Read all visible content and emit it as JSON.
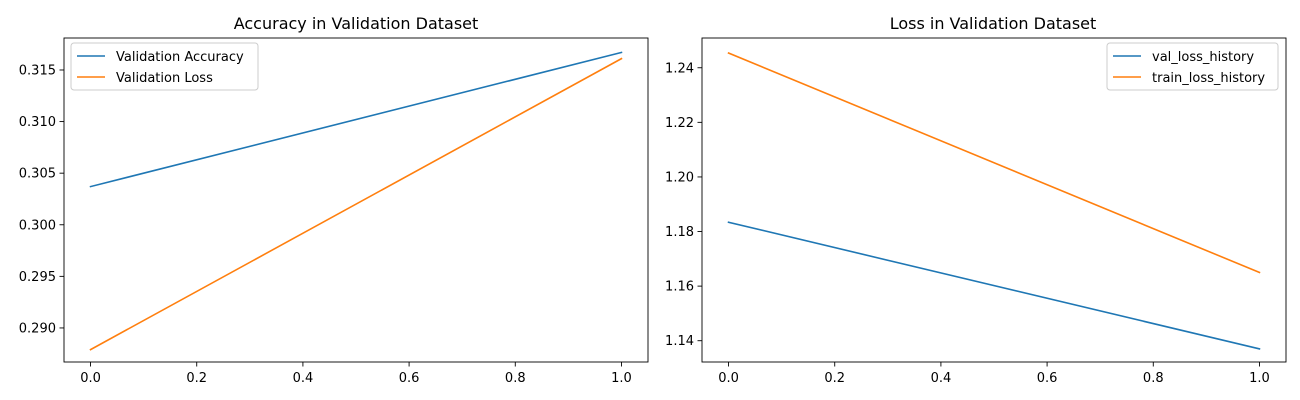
{
  "chart_data": [
    {
      "type": "line",
      "title": "Accuracy in Validation Dataset",
      "xlabel": "",
      "ylabel": "",
      "xlim": [
        -0.05,
        1.05
      ],
      "ylim": [
        0.2867,
        0.3181
      ],
      "xticks": [
        0.0,
        0.2,
        0.4,
        0.6,
        0.8,
        1.0
      ],
      "xtick_labels": [
        "0.0",
        "0.2",
        "0.4",
        "0.6",
        "0.8",
        "1.0"
      ],
      "yticks": [
        0.29,
        0.295,
        0.3,
        0.305,
        0.31,
        0.315
      ],
      "ytick_labels": [
        "0.290",
        "0.295",
        "0.300",
        "0.305",
        "0.310",
        "0.315"
      ],
      "grid": false,
      "legend_position": "top-left",
      "series": [
        {
          "name": "Validation Accuracy",
          "color": "#1f77b4",
          "x": [
            0,
            1
          ],
          "y": [
            0.3037,
            0.3167
          ]
        },
        {
          "name": "Validation Loss",
          "color": "#ff7f0e",
          "x": [
            0,
            1
          ],
          "y": [
            0.2879,
            0.3161
          ]
        }
      ]
    },
    {
      "type": "line",
      "title": "Loss in Validation Dataset",
      "xlabel": "",
      "ylabel": "",
      "xlim": [
        -0.05,
        1.05
      ],
      "ylim": [
        1.1322,
        1.2509
      ],
      "xticks": [
        0.0,
        0.2,
        0.4,
        0.6,
        0.8,
        1.0
      ],
      "xtick_labels": [
        "0.0",
        "0.2",
        "0.4",
        "0.6",
        "0.8",
        "1.0"
      ],
      "yticks": [
        1.14,
        1.16,
        1.18,
        1.2,
        1.22,
        1.24
      ],
      "ytick_labels": [
        "1.14",
        "1.16",
        "1.18",
        "1.20",
        "1.22",
        "1.24"
      ],
      "grid": false,
      "legend_position": "top-right",
      "series": [
        {
          "name": "val_loss_history",
          "color": "#1f77b4",
          "x": [
            0,
            1
          ],
          "y": [
            1.1834,
            1.137
          ]
        },
        {
          "name": "train_loss_history",
          "color": "#ff7f0e",
          "x": [
            0,
            1
          ],
          "y": [
            1.2454,
            1.165
          ]
        }
      ]
    }
  ]
}
